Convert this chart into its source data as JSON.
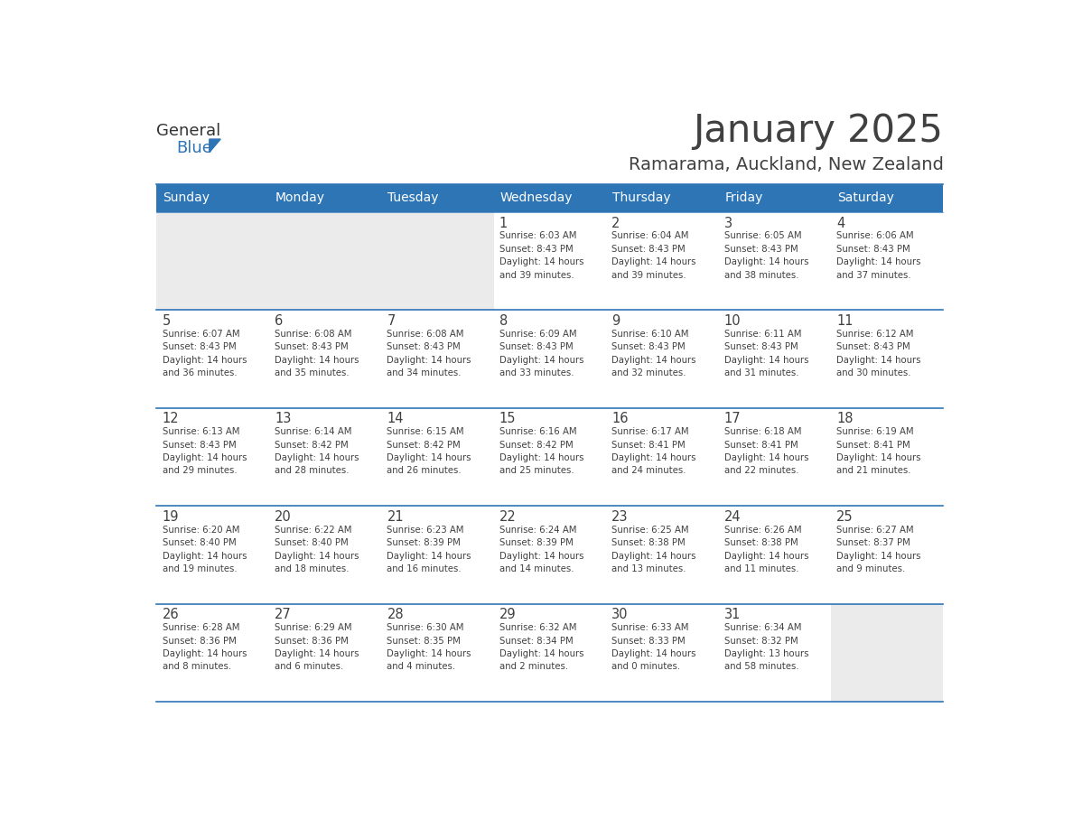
{
  "title": "January 2025",
  "subtitle": "Ramarama, Auckland, New Zealand",
  "header_bg_color": "#2E75B6",
  "header_text_color": "#FFFFFF",
  "cell_bg_color": "#FFFFFF",
  "alt_cell_bg_color": "#EBEBEB",
  "border_color": "#2E75B6",
  "text_color": "#404040",
  "days_of_week": [
    "Sunday",
    "Monday",
    "Tuesday",
    "Wednesday",
    "Thursday",
    "Friday",
    "Saturday"
  ],
  "calendar_data": [
    [
      {
        "day": "",
        "info": ""
      },
      {
        "day": "",
        "info": ""
      },
      {
        "day": "",
        "info": ""
      },
      {
        "day": "1",
        "info": "Sunrise: 6:03 AM\nSunset: 8:43 PM\nDaylight: 14 hours\nand 39 minutes."
      },
      {
        "day": "2",
        "info": "Sunrise: 6:04 AM\nSunset: 8:43 PM\nDaylight: 14 hours\nand 39 minutes."
      },
      {
        "day": "3",
        "info": "Sunrise: 6:05 AM\nSunset: 8:43 PM\nDaylight: 14 hours\nand 38 minutes."
      },
      {
        "day": "4",
        "info": "Sunrise: 6:06 AM\nSunset: 8:43 PM\nDaylight: 14 hours\nand 37 minutes."
      }
    ],
    [
      {
        "day": "5",
        "info": "Sunrise: 6:07 AM\nSunset: 8:43 PM\nDaylight: 14 hours\nand 36 minutes."
      },
      {
        "day": "6",
        "info": "Sunrise: 6:08 AM\nSunset: 8:43 PM\nDaylight: 14 hours\nand 35 minutes."
      },
      {
        "day": "7",
        "info": "Sunrise: 6:08 AM\nSunset: 8:43 PM\nDaylight: 14 hours\nand 34 minutes."
      },
      {
        "day": "8",
        "info": "Sunrise: 6:09 AM\nSunset: 8:43 PM\nDaylight: 14 hours\nand 33 minutes."
      },
      {
        "day": "9",
        "info": "Sunrise: 6:10 AM\nSunset: 8:43 PM\nDaylight: 14 hours\nand 32 minutes."
      },
      {
        "day": "10",
        "info": "Sunrise: 6:11 AM\nSunset: 8:43 PM\nDaylight: 14 hours\nand 31 minutes."
      },
      {
        "day": "11",
        "info": "Sunrise: 6:12 AM\nSunset: 8:43 PM\nDaylight: 14 hours\nand 30 minutes."
      }
    ],
    [
      {
        "day": "12",
        "info": "Sunrise: 6:13 AM\nSunset: 8:43 PM\nDaylight: 14 hours\nand 29 minutes."
      },
      {
        "day": "13",
        "info": "Sunrise: 6:14 AM\nSunset: 8:42 PM\nDaylight: 14 hours\nand 28 minutes."
      },
      {
        "day": "14",
        "info": "Sunrise: 6:15 AM\nSunset: 8:42 PM\nDaylight: 14 hours\nand 26 minutes."
      },
      {
        "day": "15",
        "info": "Sunrise: 6:16 AM\nSunset: 8:42 PM\nDaylight: 14 hours\nand 25 minutes."
      },
      {
        "day": "16",
        "info": "Sunrise: 6:17 AM\nSunset: 8:41 PM\nDaylight: 14 hours\nand 24 minutes."
      },
      {
        "day": "17",
        "info": "Sunrise: 6:18 AM\nSunset: 8:41 PM\nDaylight: 14 hours\nand 22 minutes."
      },
      {
        "day": "18",
        "info": "Sunrise: 6:19 AM\nSunset: 8:41 PM\nDaylight: 14 hours\nand 21 minutes."
      }
    ],
    [
      {
        "day": "19",
        "info": "Sunrise: 6:20 AM\nSunset: 8:40 PM\nDaylight: 14 hours\nand 19 minutes."
      },
      {
        "day": "20",
        "info": "Sunrise: 6:22 AM\nSunset: 8:40 PM\nDaylight: 14 hours\nand 18 minutes."
      },
      {
        "day": "21",
        "info": "Sunrise: 6:23 AM\nSunset: 8:39 PM\nDaylight: 14 hours\nand 16 minutes."
      },
      {
        "day": "22",
        "info": "Sunrise: 6:24 AM\nSunset: 8:39 PM\nDaylight: 14 hours\nand 14 minutes."
      },
      {
        "day": "23",
        "info": "Sunrise: 6:25 AM\nSunset: 8:38 PM\nDaylight: 14 hours\nand 13 minutes."
      },
      {
        "day": "24",
        "info": "Sunrise: 6:26 AM\nSunset: 8:38 PM\nDaylight: 14 hours\nand 11 minutes."
      },
      {
        "day": "25",
        "info": "Sunrise: 6:27 AM\nSunset: 8:37 PM\nDaylight: 14 hours\nand 9 minutes."
      }
    ],
    [
      {
        "day": "26",
        "info": "Sunrise: 6:28 AM\nSunset: 8:36 PM\nDaylight: 14 hours\nand 8 minutes."
      },
      {
        "day": "27",
        "info": "Sunrise: 6:29 AM\nSunset: 8:36 PM\nDaylight: 14 hours\nand 6 minutes."
      },
      {
        "day": "28",
        "info": "Sunrise: 6:30 AM\nSunset: 8:35 PM\nDaylight: 14 hours\nand 4 minutes."
      },
      {
        "day": "29",
        "info": "Sunrise: 6:32 AM\nSunset: 8:34 PM\nDaylight: 14 hours\nand 2 minutes."
      },
      {
        "day": "30",
        "info": "Sunrise: 6:33 AM\nSunset: 8:33 PM\nDaylight: 14 hours\nand 0 minutes."
      },
      {
        "day": "31",
        "info": "Sunrise: 6:34 AM\nSunset: 8:32 PM\nDaylight: 13 hours\nand 58 minutes."
      },
      {
        "day": "",
        "info": ""
      }
    ]
  ],
  "num_weeks": 5,
  "num_cols": 7,
  "logo_general_color": "#333333",
  "logo_blue_color": "#2E75B6"
}
